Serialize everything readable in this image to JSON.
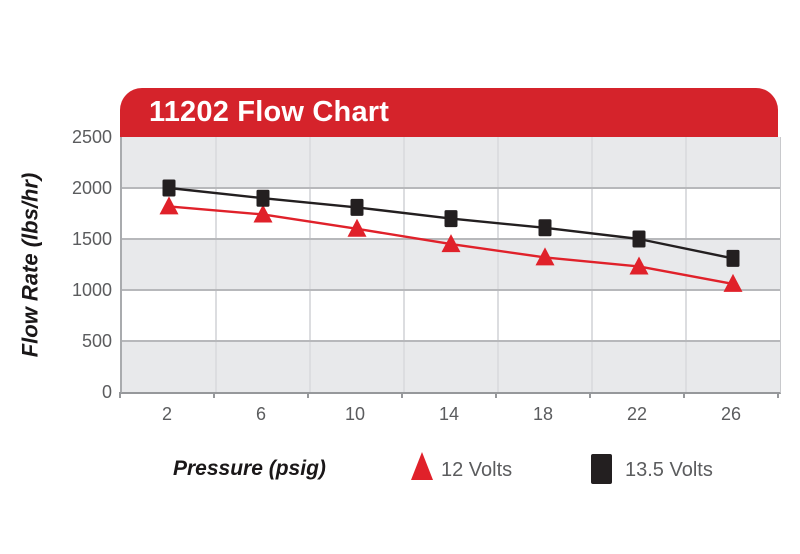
{
  "banner": {
    "title": "11202 Flow Chart"
  },
  "axes": {
    "y_title": "Flow Rate (lbs/hr)",
    "x_title": "Pressure (psig)",
    "y_ticks": [
      "2500",
      "2000",
      "1500",
      "1000",
      "500",
      "0"
    ],
    "x_ticks": [
      "2",
      "6",
      "10",
      "14",
      "18",
      "22",
      "26"
    ]
  },
  "legend": {
    "items": [
      {
        "label": "12 Volts",
        "marker": "triangle-icon",
        "color": "#e0212a"
      },
      {
        "label": "13.5 Volts",
        "marker": "square-icon",
        "color": "#231f20"
      }
    ]
  },
  "colors": {
    "banner_red": "#d5232b",
    "series_red": "#e0212a",
    "series_black": "#231f20",
    "band_gray": "#e8e9eb",
    "band_white": "#ffffff",
    "text_gray": "#5b5c5e"
  },
  "chart_data": {
    "type": "line",
    "title": "11202 Flow Chart",
    "xlabel": "Pressure (psig)",
    "ylabel": "Flow Rate (lbs/hr)",
    "x": [
      2,
      6,
      10,
      14,
      18,
      22,
      26
    ],
    "series": [
      {
        "name": "12 Volts",
        "marker": "triangle",
        "color": "#e0212a",
        "values": [
          1820,
          1740,
          1600,
          1450,
          1320,
          1230,
          1060
        ]
      },
      {
        "name": "13.5 Volts",
        "marker": "square",
        "color": "#231f20",
        "values": [
          2000,
          1900,
          1810,
          1700,
          1610,
          1500,
          1310
        ]
      }
    ],
    "ylim": [
      0,
      2500
    ],
    "y_tick_step": 500,
    "x_tick_step": 4,
    "grid": "horizontal gridlines at 500 steps; vertical lines at category boundaries; alternating gray/white bands",
    "legend_position": "bottom"
  }
}
